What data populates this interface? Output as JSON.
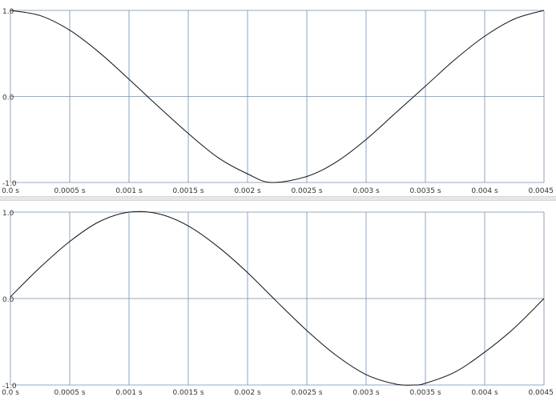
{
  "colors": {
    "grid": "#6f8fb5",
    "trace": "#111111",
    "background": "#ffffff"
  },
  "chart_data": [
    {
      "type": "line",
      "title": "",
      "xlabel": "",
      "ylabel": "",
      "xlim": [
        0,
        0.0045
      ],
      "ylim": [
        -1.0,
        1.0
      ],
      "x_ticks": [
        0,
        0.0005,
        0.001,
        0.0015,
        0.002,
        0.0025,
        0.003,
        0.0035,
        0.004,
        0.0045
      ],
      "x_tick_labels": [
        "0.0 s",
        "0.0005 s",
        "0.001 s",
        "0.0015 s",
        "0.002 s",
        "0.0025 s",
        "0.003 s",
        "0.0035 s",
        "0.004 s",
        "0.0045 s"
      ],
      "y_ticks": [
        1.0,
        0.0,
        -1.0
      ],
      "y_tick_labels": [
        "1.0",
        "0.0",
        "-1.0"
      ],
      "grid": true,
      "series": [
        {
          "x": [
            0,
            0.00025,
            0.0005,
            0.00075,
            0.001,
            0.00125,
            0.0015,
            0.00175,
            0.002,
            0.0022,
            0.0025,
            0.00275,
            0.003,
            0.00325,
            0.0035,
            0.00375,
            0.004,
            0.00425,
            0.0045
          ],
          "y": [
            1.0,
            0.94,
            0.77,
            0.51,
            0.2,
            -0.12,
            -0.43,
            -0.71,
            -0.9,
            -1.0,
            -0.93,
            -0.76,
            -0.5,
            -0.19,
            0.12,
            0.43,
            0.7,
            0.9,
            1.0
          ]
        }
      ]
    },
    {
      "type": "line",
      "title": "",
      "xlabel": "",
      "ylabel": "",
      "xlim": [
        0,
        0.0045
      ],
      "ylim": [
        -1.0,
        1.0
      ],
      "x_ticks": [
        0,
        0.0005,
        0.001,
        0.0015,
        0.002,
        0.0025,
        0.003,
        0.0035,
        0.004,
        0.0045
      ],
      "x_tick_labels": [
        "0.0 s",
        "0.0005 s",
        "0.001 s",
        "0.0015 s",
        "0.002 s",
        "0.0025 s",
        "0.003 s",
        "0.0035 s",
        "0.004 s",
        "0.0045 s"
      ],
      "y_ticks": [
        1.0,
        0.0,
        -1.0
      ],
      "y_tick_labels": [
        "1.0",
        "0.0",
        "-1.0"
      ],
      "grid": true,
      "series": [
        {
          "x": [
            0,
            0.00025,
            0.0005,
            0.00075,
            0.001,
            0.00125,
            0.0015,
            0.00175,
            0.002,
            0.00225,
            0.0025,
            0.00275,
            0.003,
            0.00325,
            0.0034,
            0.0035,
            0.00375,
            0.004,
            0.00425,
            0.0045
          ],
          "y": [
            0.02,
            0.36,
            0.66,
            0.89,
            1.0,
            0.98,
            0.84,
            0.6,
            0.3,
            -0.04,
            -0.37,
            -0.66,
            -0.88,
            -0.99,
            -1.0,
            -0.98,
            -0.85,
            -0.62,
            -0.34,
            0.0
          ]
        }
      ]
    }
  ]
}
